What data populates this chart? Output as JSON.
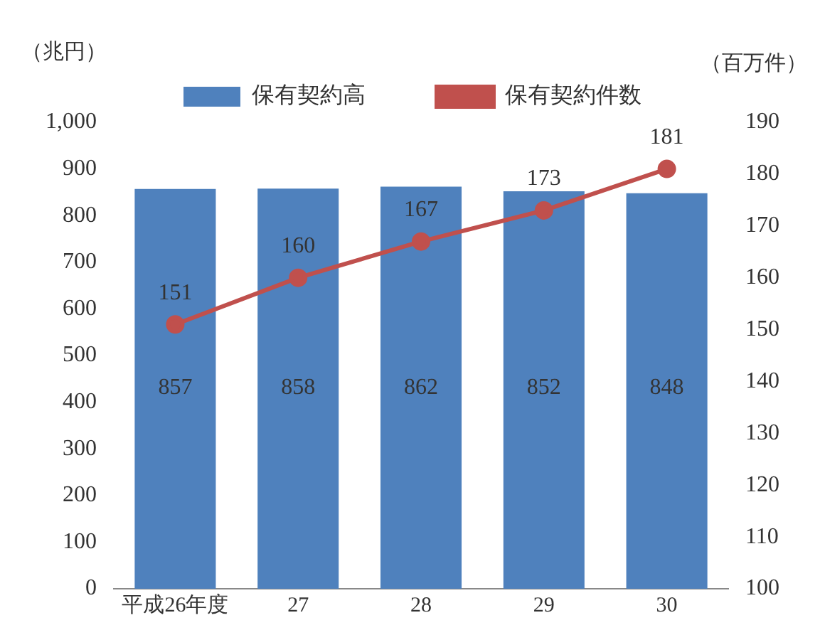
{
  "chart_data": {
    "type": "bar",
    "categories": [
      "平成26年度",
      "27",
      "28",
      "29",
      "30"
    ],
    "series": [
      {
        "name": "保有契約高",
        "color": "#4f81bd",
        "values": [
          857,
          858,
          862,
          852,
          848
        ]
      },
      {
        "name": "保有契約件数",
        "type": "line",
        "axis": "y2",
        "color": "#c0504d",
        "values": [
          151,
          160,
          167,
          173,
          181
        ]
      }
    ],
    "ylabel": "（兆円）",
    "y2label": "（百万件）",
    "ylim": [
      0,
      1000
    ],
    "yticks": [
      0,
      100,
      200,
      300,
      400,
      500,
      600,
      700,
      800,
      900,
      {
        "value": 1000,
        "label": "1,000"
      }
    ],
    "y2lim": [
      100,
      190
    ],
    "y2ticks": [
      100,
      110,
      120,
      130,
      140,
      150,
      160,
      170,
      180,
      190
    ],
    "data_labels": true,
    "grid": false,
    "legend": "top",
    "marker": "circle",
    "line_style": "solid"
  }
}
